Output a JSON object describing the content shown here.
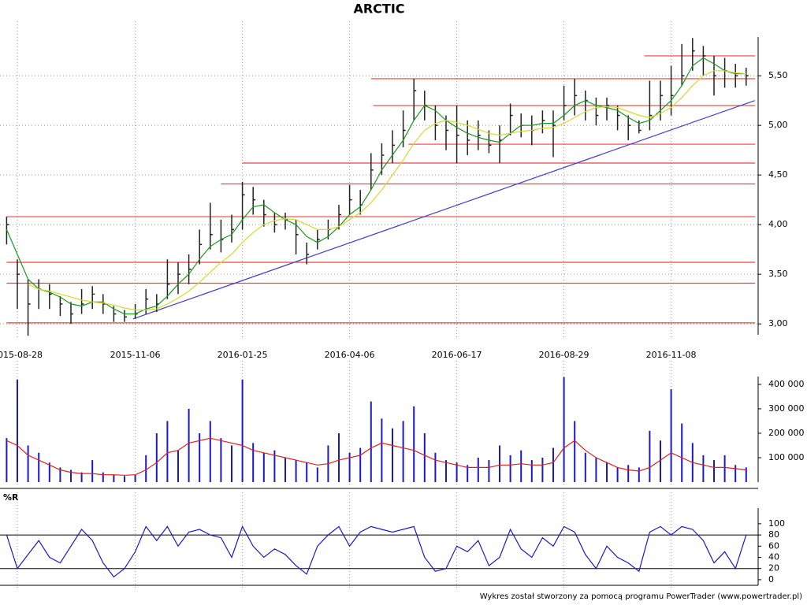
{
  "chart_data": [
    {
      "type": "ohlc",
      "title": "ARCTIC",
      "categories": [
        null,
        "2015-08-28",
        null,
        null,
        null,
        null,
        null,
        null,
        null,
        null,
        null,
        null,
        "2015-11-06",
        null,
        null,
        null,
        null,
        null,
        null,
        null,
        null,
        null,
        "2016-01-25",
        null,
        null,
        null,
        null,
        null,
        null,
        null,
        null,
        null,
        "2016-04-06",
        null,
        null,
        null,
        null,
        null,
        null,
        null,
        null,
        null,
        "2016-06-17",
        null,
        null,
        null,
        null,
        null,
        null,
        null,
        null,
        null,
        "2016-08-29",
        null,
        null,
        null,
        null,
        null,
        null,
        null,
        null,
        null,
        "2016-11-08",
        null,
        null,
        null,
        null,
        null,
        null,
        null
      ],
      "high": [
        4.08,
        3.65,
        3.45,
        3.45,
        3.4,
        3.28,
        3.22,
        3.35,
        3.38,
        3.3,
        3.18,
        3.14,
        3.2,
        3.35,
        3.3,
        3.65,
        3.62,
        3.7,
        3.95,
        4.22,
        4.05,
        4.1,
        4.43,
        4.38,
        4.25,
        4.12,
        4.12,
        4.05,
        3.82,
        3.95,
        4.05,
        4.2,
        4.4,
        4.35,
        4.72,
        4.82,
        4.95,
        5.15,
        5.47,
        5.35,
        5.2,
        5.1,
        5.2,
        5.05,
        5.05,
        4.95,
        5.0,
        5.22,
        5.12,
        5.1,
        5.15,
        5.15,
        5.4,
        5.47,
        5.35,
        5.28,
        5.28,
        5.2,
        5.1,
        5.05,
        5.45,
        5.45,
        5.6,
        5.82,
        5.88,
        5.8,
        5.7,
        5.68,
        5.62,
        5.58
      ],
      "low": [
        3.8,
        3.15,
        2.88,
        3.15,
        3.15,
        3.08,
        3.0,
        3.1,
        3.15,
        3.1,
        3.02,
        3.02,
        3.05,
        3.1,
        3.12,
        3.25,
        3.3,
        3.4,
        3.6,
        3.75,
        3.72,
        3.82,
        3.95,
        4.1,
        3.98,
        3.92,
        3.95,
        3.7,
        3.6,
        3.75,
        3.85,
        3.95,
        4.1,
        4.1,
        4.35,
        4.5,
        4.62,
        4.78,
        5.05,
        5.05,
        4.85,
        4.75,
        4.62,
        4.7,
        4.75,
        4.72,
        4.62,
        4.9,
        4.88,
        4.8,
        4.92,
        4.68,
        5.05,
        5.1,
        5.05,
        5.0,
        5.05,
        4.95,
        4.85,
        4.92,
        4.95,
        5.05,
        5.1,
        5.4,
        5.55,
        5.5,
        5.3,
        5.38,
        5.38,
        5.4
      ],
      "close": [
        4.0,
        3.5,
        3.2,
        3.35,
        3.3,
        3.2,
        3.1,
        3.2,
        3.3,
        3.2,
        3.1,
        3.07,
        3.1,
        3.25,
        3.2,
        3.4,
        3.5,
        3.55,
        3.8,
        3.9,
        3.85,
        3.95,
        4.3,
        4.25,
        4.1,
        4.0,
        4.05,
        3.9,
        3.7,
        3.85,
        3.95,
        4.1,
        4.25,
        4.2,
        4.55,
        4.7,
        4.8,
        4.95,
        5.35,
        5.2,
        5.0,
        4.95,
        4.9,
        4.85,
        4.9,
        4.8,
        4.85,
        5.1,
        5.0,
        4.95,
        5.05,
        5.0,
        5.2,
        5.3,
        5.25,
        5.1,
        5.2,
        5.1,
        5.0,
        4.95,
        5.1,
        5.3,
        5.3,
        5.5,
        5.75,
        5.7,
        5.5,
        5.55,
        5.5,
        5.5
      ],
      "bar_color": "#222222",
      "series": [
        {
          "color": "#1a9a1a",
          "values": [
            3.95,
            3.7,
            3.45,
            3.35,
            3.32,
            3.27,
            3.2,
            3.18,
            3.22,
            3.22,
            3.15,
            3.1,
            3.1,
            3.15,
            3.18,
            3.28,
            3.4,
            3.5,
            3.65,
            3.78,
            3.85,
            3.9,
            4.05,
            4.18,
            4.2,
            4.12,
            4.05,
            4.0,
            3.88,
            3.82,
            3.88,
            3.98,
            4.1,
            4.18,
            4.35,
            4.55,
            4.7,
            4.85,
            5.05,
            5.2,
            5.15,
            5.05,
            4.98,
            4.92,
            4.88,
            4.85,
            4.83,
            4.92,
            5.0,
            5.0,
            5.02,
            5.02,
            5.1,
            5.2,
            5.25,
            5.2,
            5.18,
            5.15,
            5.08,
            5.02,
            5.05,
            5.15,
            5.25,
            5.4,
            5.6,
            5.68,
            5.62,
            5.55,
            5.52,
            5.52
          ]
        },
        {
          "color": "#d8d830",
          "values": [
            null,
            null,
            3.4,
            3.35,
            3.33,
            3.3,
            3.27,
            3.24,
            3.22,
            3.21,
            3.19,
            3.16,
            3.14,
            3.14,
            3.15,
            3.2,
            3.26,
            3.33,
            3.42,
            3.52,
            3.62,
            3.7,
            3.82,
            3.92,
            4.0,
            4.04,
            4.06,
            4.05,
            4.0,
            3.95,
            3.95,
            3.98,
            4.05,
            4.12,
            4.22,
            4.35,
            4.5,
            4.65,
            4.82,
            4.95,
            5.02,
            5.05,
            5.03,
            5.0,
            4.96,
            4.92,
            4.9,
            4.92,
            4.94,
            4.95,
            4.97,
            4.98,
            5.02,
            5.08,
            5.14,
            5.18,
            5.19,
            5.18,
            5.14,
            5.1,
            5.08,
            5.12,
            5.18,
            5.28,
            5.4,
            5.5,
            5.55,
            5.55,
            5.53,
            5.52
          ]
        }
      ],
      "levels": [
        {
          "value": 3.01,
          "start": 0
        },
        {
          "value": 3.41,
          "start": 0
        },
        {
          "value": 3.62,
          "start": 0
        },
        {
          "value": 4.08,
          "start": 0
        },
        {
          "value": 4.41,
          "start": 20
        },
        {
          "value": 4.62,
          "start": 22
        },
        {
          "value": 4.81,
          "start": 37.5
        },
        {
          "value": 5.2,
          "start": 34.2
        },
        {
          "value": 5.47,
          "start": 34
        },
        {
          "value": 5.7,
          "start": 59.5
        }
      ],
      "level_color": "#f04040",
      "trend": {
        "x": [
          11.8,
          69.8
        ],
        "y": [
          3.05,
          5.25
        ],
        "color": "#4040d0"
      },
      "ylim": [
        2.89,
        5.89
      ],
      "yticks": [
        {
          "value": 3,
          "label": "3,00"
        },
        {
          "value": 3.5,
          "label": "3,50"
        },
        {
          "value": 4,
          "label": "4,00"
        },
        {
          "value": 4.5,
          "label": "4,50"
        },
        {
          "value": 5,
          "label": "5,00"
        },
        {
          "value": 5.5,
          "label": "5,50"
        }
      ],
      "grid": true
    },
    {
      "type": "bar",
      "values": [
        180000,
        420000,
        150000,
        120000,
        80000,
        60000,
        50000,
        40000,
        90000,
        40000,
        30000,
        25000,
        30000,
        110000,
        200000,
        250000,
        130000,
        300000,
        200000,
        250000,
        180000,
        150000,
        420000,
        160000,
        120000,
        130000,
        100000,
        90000,
        80000,
        60000,
        150000,
        200000,
        120000,
        140000,
        330000,
        260000,
        220000,
        250000,
        310000,
        200000,
        120000,
        90000,
        80000,
        70000,
        100000,
        90000,
        150000,
        110000,
        130000,
        90000,
        100000,
        140000,
        430000,
        250000,
        120000,
        100000,
        80000,
        60000,
        70000,
        60000,
        210000,
        170000,
        380000,
        240000,
        160000,
        110000,
        90000,
        110000,
        70000,
        60000
      ],
      "color": "#1a1ac8",
      "series": [
        {
          "color": "#e02020",
          "values": [
            170000,
            150000,
            110000,
            90000,
            70000,
            50000,
            40000,
            35000,
            35000,
            30000,
            30000,
            28000,
            30000,
            50000,
            80000,
            120000,
            130000,
            160000,
            170000,
            180000,
            170000,
            160000,
            150000,
            130000,
            120000,
            110000,
            100000,
            90000,
            80000,
            70000,
            75000,
            90000,
            100000,
            110000,
            140000,
            160000,
            150000,
            140000,
            130000,
            110000,
            90000,
            80000,
            70000,
            60000,
            60000,
            60000,
            70000,
            70000,
            75000,
            70000,
            70000,
            80000,
            140000,
            170000,
            130000,
            100000,
            80000,
            60000,
            50000,
            45000,
            60000,
            90000,
            120000,
            100000,
            80000,
            70000,
            60000,
            60000,
            55000,
            50000
          ]
        }
      ],
      "ylim": [
        0,
        432000
      ],
      "yticks": [
        {
          "value": 100000,
          "label": "100 000"
        },
        {
          "value": 200000,
          "label": "200 000"
        },
        {
          "value": 300000,
          "label": "300 000"
        },
        {
          "value": 400000,
          "label": "400 000"
        }
      ]
    },
    {
      "type": "line",
      "title": "%R",
      "values": [
        80,
        20,
        45,
        70,
        40,
        30,
        60,
        90,
        70,
        30,
        5,
        20,
        50,
        95,
        70,
        95,
        60,
        85,
        90,
        80,
        75,
        40,
        95,
        60,
        40,
        55,
        45,
        25,
        10,
        60,
        80,
        95,
        60,
        85,
        95,
        90,
        85,
        90,
        95,
        40,
        15,
        20,
        60,
        50,
        70,
        25,
        40,
        90,
        55,
        40,
        75,
        60,
        95,
        85,
        45,
        20,
        60,
        40,
        30,
        15,
        85,
        95,
        80,
        95,
        90,
        70,
        30,
        50,
        20,
        80
      ],
      "color": "#1a1ac8",
      "levels": [
        20,
        80
      ],
      "ylim": [
        -10,
        128
      ],
      "yticks": [
        0,
        20,
        40,
        60,
        80,
        100
      ]
    }
  ],
  "footer": "Wykres został stworzony za pomocą programu PowerTrader (www.powertrader.pl)"
}
